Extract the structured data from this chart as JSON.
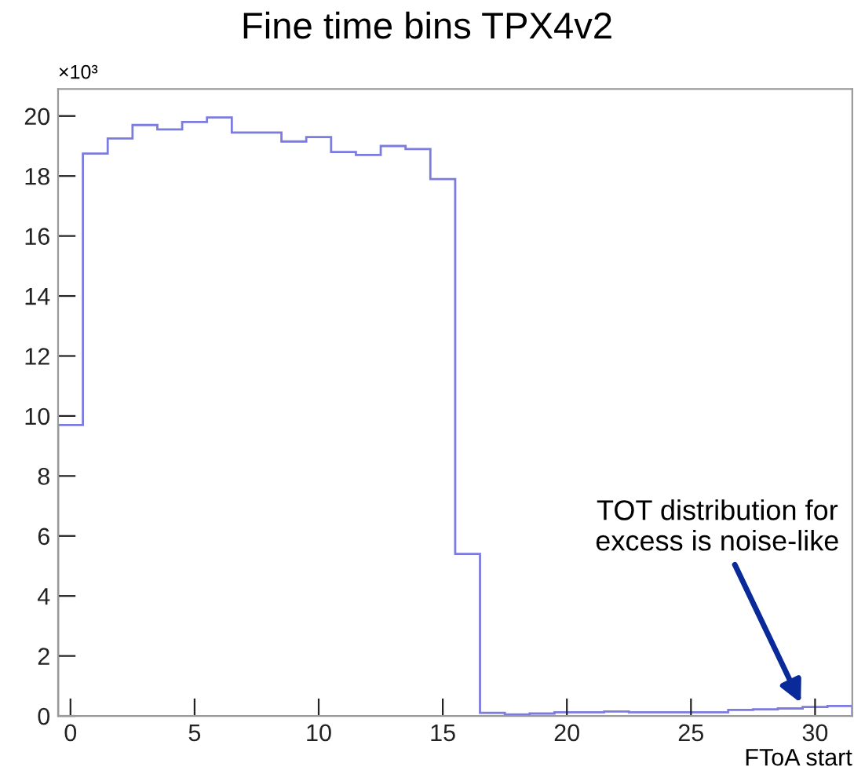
{
  "chart_data": {
    "type": "histogram",
    "title": "Fine time bins TPX4v2",
    "xlabel": "FToA start",
    "bins": [
      -0.5,
      0.5,
      1.5,
      2.5,
      3.5,
      4.5,
      5.5,
      6.5,
      7.5,
      8.5,
      9.5,
      10.5,
      11.5,
      12.5,
      13.5,
      14.5,
      15.5,
      16.5,
      17.5,
      18.5,
      19.5,
      20.5,
      21.5,
      22.5,
      23.5,
      24.5,
      25.5,
      26.5,
      27.5,
      28.5,
      29.5,
      30.5,
      31.5
    ],
    "values": [
      9.7,
      18.75,
      19.25,
      19.7,
      19.55,
      19.8,
      19.95,
      19.45,
      19.45,
      19.15,
      19.3,
      18.8,
      18.7,
      19.0,
      18.9,
      17.9,
      5.4,
      0.1,
      0.05,
      0.08,
      0.12,
      0.12,
      0.15,
      0.12,
      0.12,
      0.12,
      0.12,
      0.2,
      0.22,
      0.25,
      0.3,
      0.33
    ],
    "color": "#7b7be0",
    "xlim": [
      -0.5,
      31.5
    ],
    "xticks": [
      0,
      5,
      10,
      15,
      20,
      25,
      30
    ],
    "ylim": [
      0,
      20.9
    ],
    "yticks": [
      0,
      2,
      4,
      6,
      8,
      10,
      12,
      14,
      16,
      18,
      20
    ],
    "grid": false,
    "annotations": [
      "×10³",
      {
        "text": "TOT distribution for\nexcess is noise-like",
        "x": 29.5,
        "y": 0.3
      }
    ]
  }
}
